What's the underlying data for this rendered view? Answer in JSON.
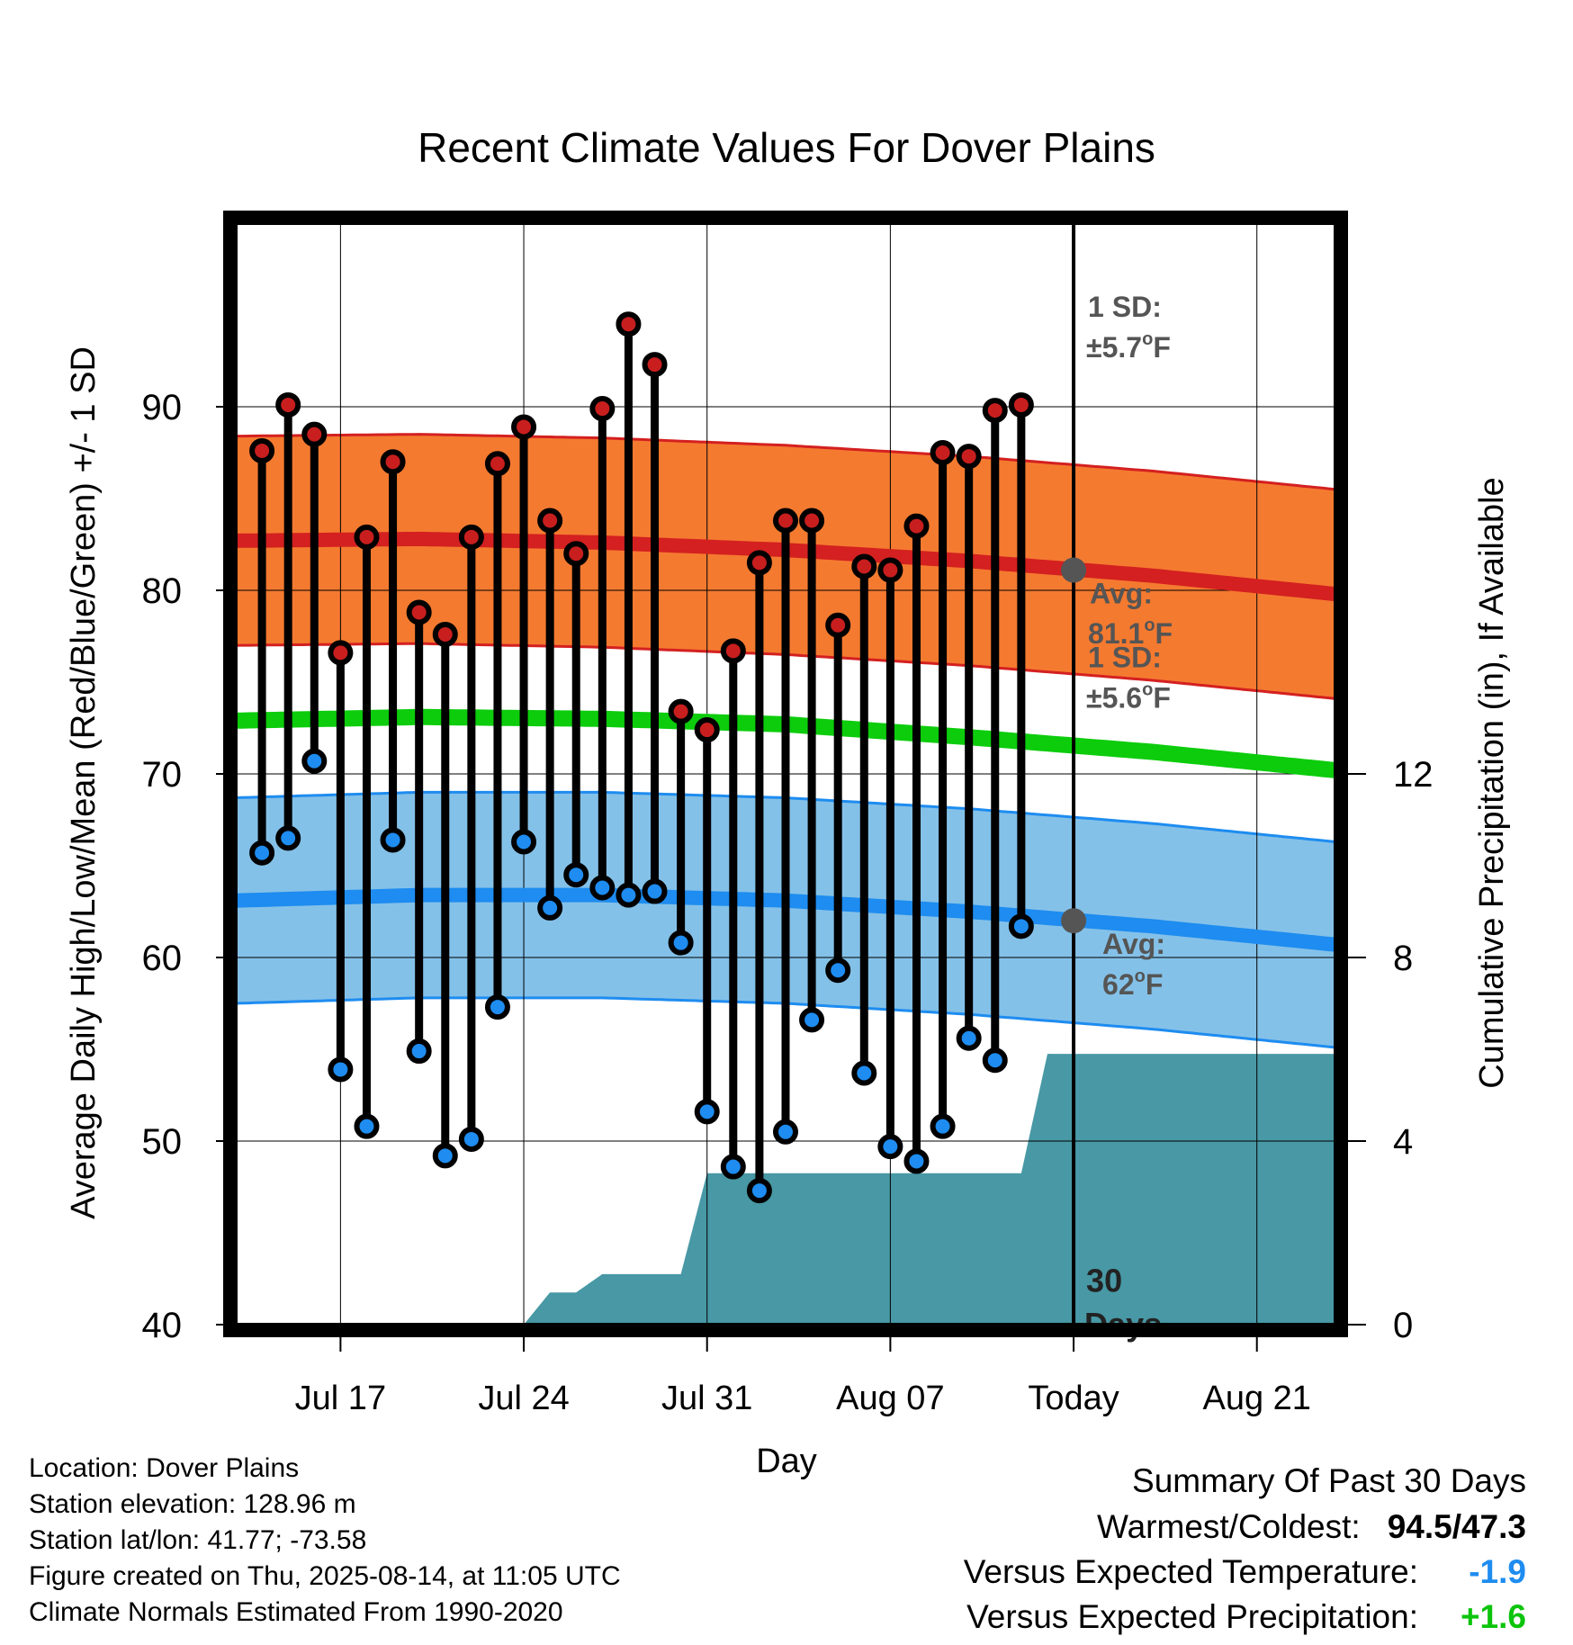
{
  "chart_data": {
    "type": "line",
    "title": "Recent Climate Values For Dover Plains",
    "xlabel": "Day",
    "ylabel": "Average Daily High/Low/Mean (Red/Blue/Green) +/- 1 SD",
    "y2label": "Cumulative Precipitation (in), If Available",
    "ylim": [
      40,
      100
    ],
    "y_ticks": [
      "40",
      "50",
      "60",
      "70",
      "80",
      "90"
    ],
    "y2lim": [
      0,
      24
    ],
    "y2_ticks": [
      "0",
      "4",
      "8",
      "12"
    ],
    "xlim": [
      "2025-07-13",
      "2025-08-24"
    ],
    "x_ticks": [
      {
        "date": "2025-07-17",
        "label": "Jul 17"
      },
      {
        "date": "2025-07-24",
        "label": "Jul 24"
      },
      {
        "date": "2025-07-31",
        "label": "Jul 31"
      },
      {
        "date": "2025-08-07",
        "label": "Aug 07"
      },
      {
        "date": "2025-08-14",
        "label": "Today"
      },
      {
        "date": "2025-08-21",
        "label": "Aug 21"
      }
    ],
    "today": "2025-08-14",
    "grid": true,
    "dates": [
      "2025-07-14",
      "2025-07-15",
      "2025-07-16",
      "2025-07-17",
      "2025-07-18",
      "2025-07-19",
      "2025-07-20",
      "2025-07-21",
      "2025-07-22",
      "2025-07-23",
      "2025-07-24",
      "2025-07-25",
      "2025-07-26",
      "2025-07-27",
      "2025-07-28",
      "2025-07-29",
      "2025-07-30",
      "2025-07-31",
      "2025-08-01",
      "2025-08-02",
      "2025-08-03",
      "2025-08-04",
      "2025-08-05",
      "2025-08-06",
      "2025-08-07",
      "2025-08-08",
      "2025-08-09",
      "2025-08-10",
      "2025-08-11",
      "2025-08-12",
      "2025-08-13"
    ],
    "highs": [
      87.6,
      90.1,
      88.5,
      76.6,
      82.9,
      87.0,
      78.8,
      77.6,
      82.9,
      86.9,
      88.9,
      83.8,
      82.0,
      89.9,
      94.5,
      92.3,
      73.4,
      72.4,
      76.7,
      81.5,
      83.8,
      83.8,
      78.1,
      81.3,
      81.1,
      83.5,
      87.5,
      87.3,
      89.8,
      90.1,
      null
    ],
    "lows": [
      65.7,
      66.5,
      70.7,
      53.9,
      50.8,
      66.4,
      54.9,
      49.2,
      50.1,
      57.3,
      66.3,
      62.7,
      64.5,
      63.8,
      63.4,
      63.6,
      60.8,
      51.6,
      48.6,
      47.3,
      50.5,
      56.6,
      59.3,
      53.7,
      49.7,
      48.9,
      50.8,
      55.6,
      54.4,
      61.7,
      null
    ],
    "normals": {
      "dates": [
        "2025-07-13",
        "2025-07-20",
        "2025-07-27",
        "2025-08-03",
        "2025-08-10",
        "2025-08-17",
        "2025-08-24"
      ],
      "high_mean": [
        82.7,
        82.8,
        82.6,
        82.2,
        81.6,
        80.8,
        79.8
      ],
      "high_sd": 5.7,
      "low_mean": [
        63.1,
        63.4,
        63.4,
        63.1,
        62.5,
        61.7,
        60.7
      ],
      "low_sd": 5.6,
      "mean": [
        72.9,
        73.1,
        73.0,
        72.7,
        72.0,
        71.2,
        70.2
      ]
    },
    "precip_cumulative": [
      {
        "date": "2025-07-13",
        "value": 0
      },
      {
        "date": "2025-07-24",
        "value": 0
      },
      {
        "date": "2025-07-25",
        "value": 0.7
      },
      {
        "date": "2025-07-26",
        "value": 0.7
      },
      {
        "date": "2025-07-27",
        "value": 1.1
      },
      {
        "date": "2025-07-30",
        "value": 1.1
      },
      {
        "date": "2025-07-31",
        "value": 3.3
      },
      {
        "date": "2025-08-12",
        "value": 3.3
      },
      {
        "date": "2025-08-13",
        "value": 5.9
      },
      {
        "date": "2025-08-24",
        "value": 5.9
      }
    ],
    "annotations": {
      "high_sd_line1": "1 SD:",
      "high_sd_line2": "±5.7",
      "high_sd_unit": "F",
      "high_avg_line1": "Avg:",
      "high_avg_line2": "81.1",
      "high_avg_unit": "F",
      "low_sd_line1": "1 SD:",
      "low_sd_line2": "±5.6",
      "low_sd_unit": "F",
      "low_avg_line1": "Avg:",
      "low_avg_line2": "62",
      "low_avg_unit": "F",
      "days_line1": "30",
      "days_line2": "Days",
      "degree_mark": "o"
    },
    "colors": {
      "high_band": "#f47a30",
      "high_line": "#d42020",
      "low_band": "#84c1e8",
      "low_line": "#1e8cf0",
      "mean_line": "#0ccc0c",
      "precip": "#4898a5",
      "high_dot": "#c81e1e",
      "low_dot": "#1e8cf0",
      "annotation": "#555555",
      "avg_marker": "#555555"
    }
  },
  "info": {
    "location": "Location: Dover Plains",
    "elevation": "Station elevation: 128.96 m",
    "latlon": "Station lat/lon: 41.77; -73.58",
    "created": "Figure created on Thu, 2025-08-14, at 11:05 UTC",
    "normals": "Climate Normals Estimated From 1990-2020"
  },
  "summary": {
    "title": "Summary Of Past 30 Days",
    "warm_cold_label": "Warmest/Coldest:",
    "warm_cold_value": "94.5/47.3",
    "temp_label": "Versus Expected Temperature:",
    "temp_value": "-1.9",
    "temp_color": "#1e8cf0",
    "precip_label": "Versus Expected Precipitation:",
    "precip_value": "+1.6",
    "precip_color": "#0cc40c"
  }
}
